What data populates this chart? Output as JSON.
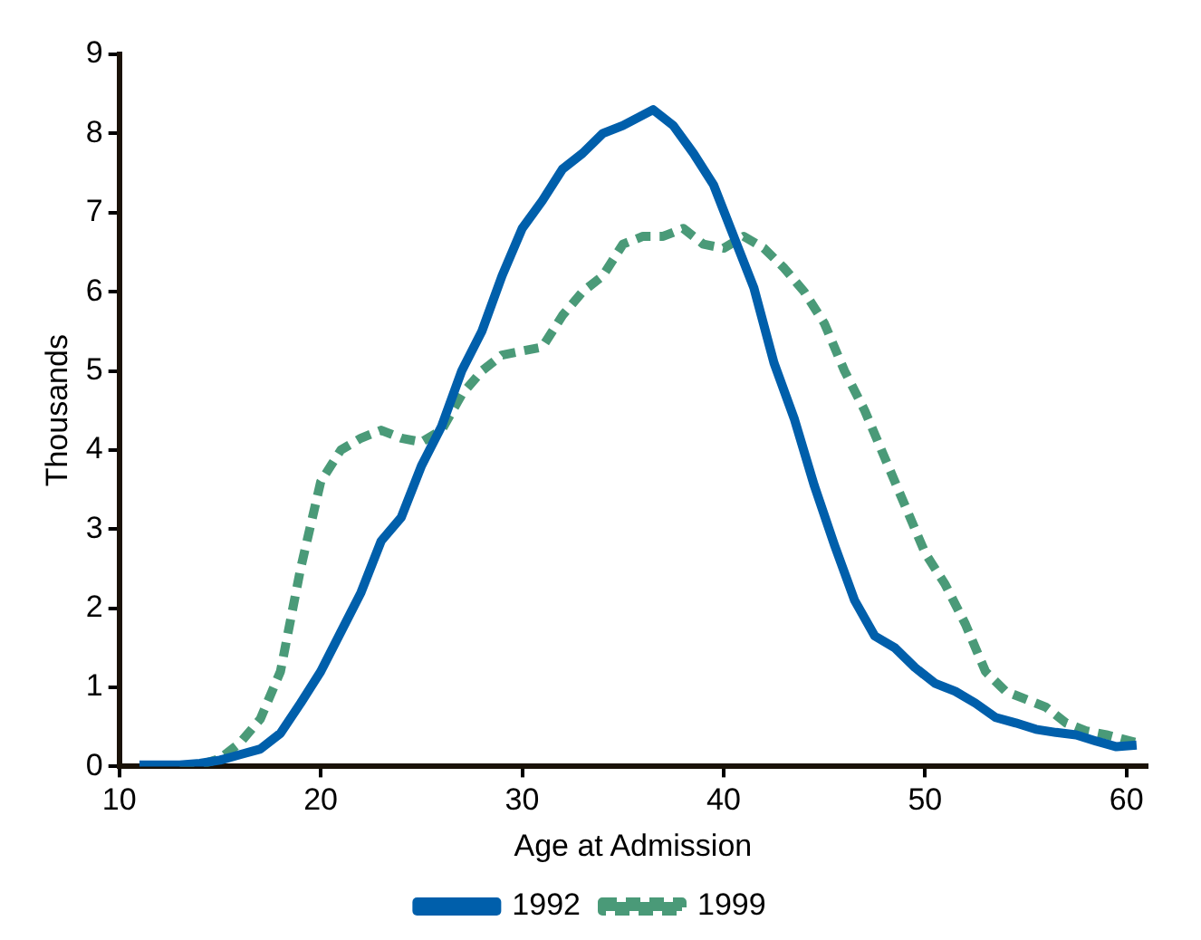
{
  "chart_data": {
    "type": "line",
    "xlabel": "Age at Admission",
    "ylabel": "Thousands",
    "xlim": [
      10,
      61
    ],
    "xticks": [
      10,
      20,
      30,
      40,
      50,
      60
    ],
    "ylim": [
      0,
      9
    ],
    "yticks": [
      0,
      1,
      2,
      3,
      4,
      5,
      6,
      7,
      8,
      9
    ],
    "grid": false,
    "legend": "bottom",
    "marker": "none",
    "series": [
      {
        "name": "1992",
        "color": "#005fab",
        "line_style": "solid",
        "x": [
          11,
          12,
          13,
          14,
          15,
          16,
          17,
          18,
          19,
          20,
          21,
          22,
          23,
          24,
          25,
          26,
          27,
          28,
          29,
          30,
          31,
          32,
          33,
          34,
          35,
          36.5,
          37.5,
          38.5,
          39.5,
          40.5,
          41.5,
          42.5,
          43.5,
          44.5,
          45.5,
          46.5,
          47.5,
          48.5,
          49.5,
          50.5,
          51.5,
          52.5,
          53.5,
          54.5,
          55.5,
          56.5,
          57.5,
          58.5,
          59.5,
          60.5
        ],
        "values": [
          0.02,
          0.02,
          0.02,
          0.04,
          0.08,
          0.15,
          0.22,
          0.42,
          0.8,
          1.2,
          1.7,
          2.2,
          2.85,
          3.15,
          3.8,
          4.3,
          5.0,
          5.5,
          6.2,
          6.8,
          7.15,
          7.55,
          7.75,
          8.0,
          8.1,
          8.3,
          8.1,
          7.75,
          7.35,
          6.7,
          6.05,
          5.1,
          4.4,
          3.55,
          2.8,
          2.1,
          1.65,
          1.5,
          1.25,
          1.05,
          0.95,
          0.8,
          0.62,
          0.55,
          0.47,
          0.43,
          0.4,
          0.32,
          0.25,
          0.27
        ]
      },
      {
        "name": "1999",
        "color": "#4a9a78",
        "line_style": "dashed",
        "x": [
          13,
          14,
          15,
          16,
          17,
          18,
          19,
          20,
          21,
          22,
          23,
          24,
          25,
          26,
          27,
          28,
          29,
          30,
          31,
          32,
          33,
          34,
          35,
          36,
          37,
          38,
          39,
          40,
          41,
          42,
          43,
          44,
          45,
          46,
          47,
          48,
          49,
          50,
          51,
          52,
          53,
          54,
          55,
          56,
          57,
          58,
          59,
          60.5
        ],
        "values": [
          0,
          0.02,
          0.1,
          0.3,
          0.6,
          1.2,
          2.5,
          3.6,
          4.0,
          4.15,
          4.25,
          4.15,
          4.1,
          4.25,
          4.7,
          5.0,
          5.2,
          5.25,
          5.3,
          5.7,
          6.0,
          6.2,
          6.6,
          6.7,
          6.7,
          6.8,
          6.6,
          6.55,
          6.7,
          6.55,
          6.3,
          6.0,
          5.6,
          5.0,
          4.5,
          3.9,
          3.3,
          2.7,
          2.3,
          1.8,
          1.2,
          0.95,
          0.85,
          0.75,
          0.55,
          0.45,
          0.4,
          0.3
        ]
      }
    ]
  }
}
